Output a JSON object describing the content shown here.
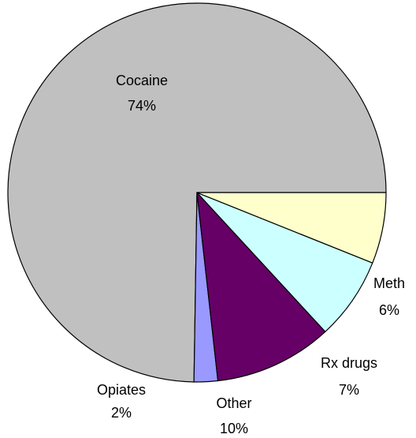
{
  "chart_data": {
    "type": "pie",
    "title": "",
    "legend": "none",
    "start_angle_deg": 0,
    "direction": "counterclockwise",
    "slices": [
      {
        "label": "Cocaine",
        "percent_label": "74%",
        "value": 74,
        "color": "#c0c0c0"
      },
      {
        "label": "Opiates",
        "percent_label": "2%",
        "value": 2,
        "color": "#9999ff"
      },
      {
        "label": "Other",
        "percent_label": "10%",
        "value": 10,
        "color": "#660066"
      },
      {
        "label": "Rx drugs",
        "percent_label": "7%",
        "value": 7,
        "color": "#ccffff"
      },
      {
        "label": "Meth",
        "percent_label": "6%",
        "value": 6,
        "color": "#ffffcc"
      }
    ]
  }
}
